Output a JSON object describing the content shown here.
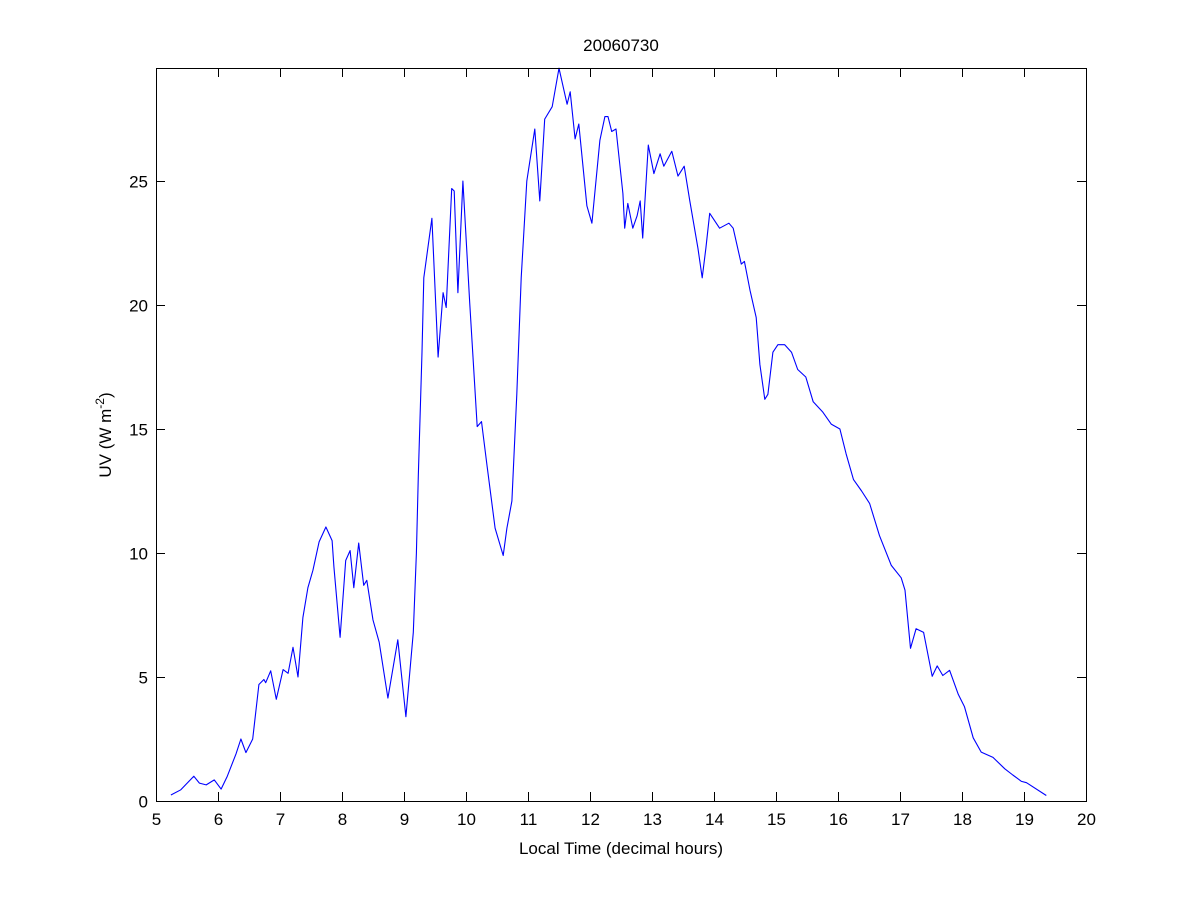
{
  "chart_data": {
    "type": "line",
    "title": "20060730",
    "xlabel": "Local Time (decimal hours)",
    "ylabel": {
      "main": "UV (W m",
      "sup": "-2",
      "close": ")"
    },
    "xlim": [
      5,
      20
    ],
    "ylim": [
      0,
      29.56
    ],
    "xticks": [
      5,
      6,
      7,
      8,
      9,
      10,
      11,
      12,
      13,
      14,
      15,
      16,
      17,
      18,
      19,
      20
    ],
    "yticks": [
      0,
      5,
      10,
      15,
      20,
      25
    ],
    "grid": false,
    "line_color": "#0000ff",
    "series": [
      {
        "name": "UV",
        "points": [
          [
            5.24,
            0.24
          ],
          [
            5.4,
            0.45
          ],
          [
            5.61,
            1.0
          ],
          [
            5.7,
            0.72
          ],
          [
            5.81,
            0.65
          ],
          [
            5.94,
            0.85
          ],
          [
            6.05,
            0.48
          ],
          [
            6.15,
            1.0
          ],
          [
            6.29,
            1.9
          ],
          [
            6.37,
            2.5
          ],
          [
            6.45,
            1.95
          ],
          [
            6.56,
            2.5
          ],
          [
            6.66,
            4.7
          ],
          [
            6.74,
            4.9
          ],
          [
            6.77,
            4.77
          ],
          [
            6.85,
            5.25
          ],
          [
            6.94,
            4.1
          ],
          [
            7.05,
            5.3
          ],
          [
            7.13,
            5.15
          ],
          [
            7.21,
            6.2
          ],
          [
            7.29,
            5.0
          ],
          [
            7.37,
            7.4
          ],
          [
            7.45,
            8.6
          ],
          [
            7.53,
            9.3
          ],
          [
            7.63,
            10.45
          ],
          [
            7.74,
            11.05
          ],
          [
            7.84,
            10.5
          ],
          [
            7.87,
            9.45
          ],
          [
            7.97,
            6.6
          ],
          [
            8.06,
            9.7
          ],
          [
            8.13,
            10.1
          ],
          [
            8.19,
            8.6
          ],
          [
            8.27,
            10.4
          ],
          [
            8.35,
            8.7
          ],
          [
            8.4,
            8.9
          ],
          [
            8.5,
            7.3
          ],
          [
            8.6,
            6.4
          ],
          [
            8.74,
            4.15
          ],
          [
            8.9,
            6.5
          ],
          [
            9.03,
            3.4
          ],
          [
            9.15,
            6.8
          ],
          [
            9.2,
            10.0
          ],
          [
            9.23,
            13.1
          ],
          [
            9.29,
            18.1
          ],
          [
            9.32,
            21.1
          ],
          [
            9.45,
            23.5
          ],
          [
            9.55,
            17.9
          ],
          [
            9.63,
            20.5
          ],
          [
            9.68,
            19.9
          ],
          [
            9.77,
            24.7
          ],
          [
            9.81,
            24.6
          ],
          [
            9.87,
            20.5
          ],
          [
            9.95,
            25.0
          ],
          [
            10.06,
            20.1
          ],
          [
            10.18,
            15.1
          ],
          [
            10.25,
            15.3
          ],
          [
            10.34,
            13.5
          ],
          [
            10.47,
            11.0
          ],
          [
            10.6,
            9.9
          ],
          [
            10.66,
            11.0
          ],
          [
            10.74,
            12.1
          ],
          [
            10.82,
            16.4
          ],
          [
            10.89,
            21.1
          ],
          [
            10.98,
            25.0
          ],
          [
            11.11,
            27.1
          ],
          [
            11.19,
            24.2
          ],
          [
            11.27,
            27.5
          ],
          [
            11.39,
            28.0
          ],
          [
            11.5,
            29.55
          ],
          [
            11.63,
            28.1
          ],
          [
            11.68,
            28.6
          ],
          [
            11.76,
            26.7
          ],
          [
            11.82,
            27.3
          ],
          [
            11.95,
            24.0
          ],
          [
            12.03,
            23.3
          ],
          [
            12.16,
            26.65
          ],
          [
            12.24,
            27.6
          ],
          [
            12.29,
            27.6
          ],
          [
            12.35,
            27.0
          ],
          [
            12.42,
            27.1
          ],
          [
            12.53,
            24.5
          ],
          [
            12.56,
            23.1
          ],
          [
            12.61,
            24.1
          ],
          [
            12.69,
            23.1
          ],
          [
            12.76,
            23.6
          ],
          [
            12.81,
            24.2
          ],
          [
            12.85,
            22.7
          ],
          [
            12.94,
            26.45
          ],
          [
            13.03,
            25.3
          ],
          [
            13.13,
            26.1
          ],
          [
            13.19,
            25.6
          ],
          [
            13.32,
            26.2
          ],
          [
            13.42,
            25.2
          ],
          [
            13.52,
            25.6
          ],
          [
            13.61,
            24.2
          ],
          [
            13.74,
            22.3
          ],
          [
            13.81,
            21.1
          ],
          [
            13.87,
            22.3
          ],
          [
            13.93,
            23.7
          ],
          [
            14.09,
            23.1
          ],
          [
            14.24,
            23.3
          ],
          [
            14.31,
            23.1
          ],
          [
            14.44,
            21.65
          ],
          [
            14.49,
            21.76
          ],
          [
            14.58,
            20.6
          ],
          [
            14.68,
            19.5
          ],
          [
            14.74,
            17.6
          ],
          [
            14.82,
            16.2
          ],
          [
            14.87,
            16.4
          ],
          [
            14.95,
            18.1
          ],
          [
            15.03,
            18.4
          ],
          [
            15.14,
            18.4
          ],
          [
            15.25,
            18.1
          ],
          [
            15.35,
            17.4
          ],
          [
            15.48,
            17.1
          ],
          [
            15.6,
            16.1
          ],
          [
            15.75,
            15.7
          ],
          [
            15.89,
            15.2
          ],
          [
            16.03,
            15.0
          ],
          [
            16.13,
            14.0
          ],
          [
            16.25,
            12.96
          ],
          [
            16.38,
            12.5
          ],
          [
            16.51,
            12.0
          ],
          [
            16.67,
            10.7
          ],
          [
            16.86,
            9.5
          ],
          [
            17.02,
            9.0
          ],
          [
            17.08,
            8.5
          ],
          [
            17.17,
            6.16
          ],
          [
            17.26,
            6.95
          ],
          [
            17.38,
            6.8
          ],
          [
            17.52,
            5.03
          ],
          [
            17.6,
            5.45
          ],
          [
            17.69,
            5.06
          ],
          [
            17.8,
            5.27
          ],
          [
            17.94,
            4.3
          ],
          [
            18.04,
            3.8
          ],
          [
            18.18,
            2.55
          ],
          [
            18.31,
            1.97
          ],
          [
            18.5,
            1.76
          ],
          [
            18.69,
            1.3
          ],
          [
            18.82,
            1.05
          ],
          [
            18.96,
            0.79
          ],
          [
            19.04,
            0.74
          ],
          [
            19.36,
            0.22
          ]
        ]
      }
    ]
  }
}
